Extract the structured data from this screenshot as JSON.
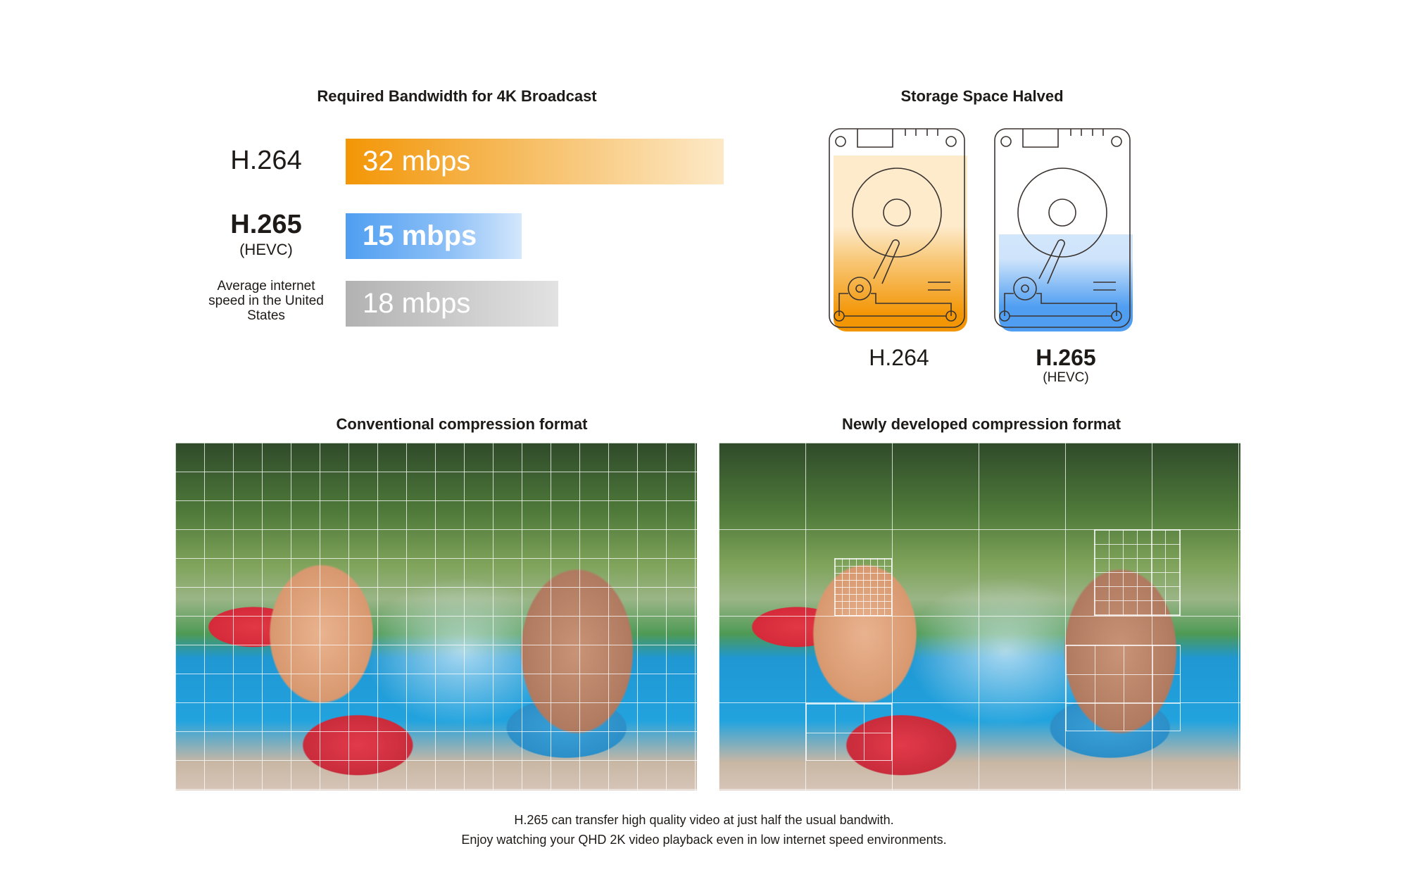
{
  "bandwidth": {
    "title": "Required Bandwidth for 4K Broadcast",
    "rows": [
      {
        "label": "H.264",
        "sublabel": "",
        "value": "32 mbps",
        "mbps": 32,
        "color": "#f39606"
      },
      {
        "label": "H.265",
        "sublabel": "(HEVC)",
        "value": "15 mbps",
        "mbps": 15,
        "color": "#4f9ef1"
      },
      {
        "label": "Average internet speed in the United States",
        "value": "18 mbps",
        "mbps": 18,
        "color": "#b2b2b2"
      }
    ]
  },
  "storage": {
    "title": "Storage Space Halved",
    "drives": [
      {
        "label": "H.264",
        "sublabel": "",
        "fill_level": 0.85,
        "color": "#f39606"
      },
      {
        "label": "H.265",
        "sublabel": "(HEVC)",
        "fill_level": 0.43,
        "color": "#4f9ef1"
      }
    ]
  },
  "comparison": {
    "left_title": "Conventional compression format",
    "right_title": "Newly developed compression format"
  },
  "footer": {
    "line1": "H.265 can transfer high quality video at just half the usual bandwith.",
    "line2": "Enjoy watching your QHD 2K video playback even in low internet speed environments."
  }
}
